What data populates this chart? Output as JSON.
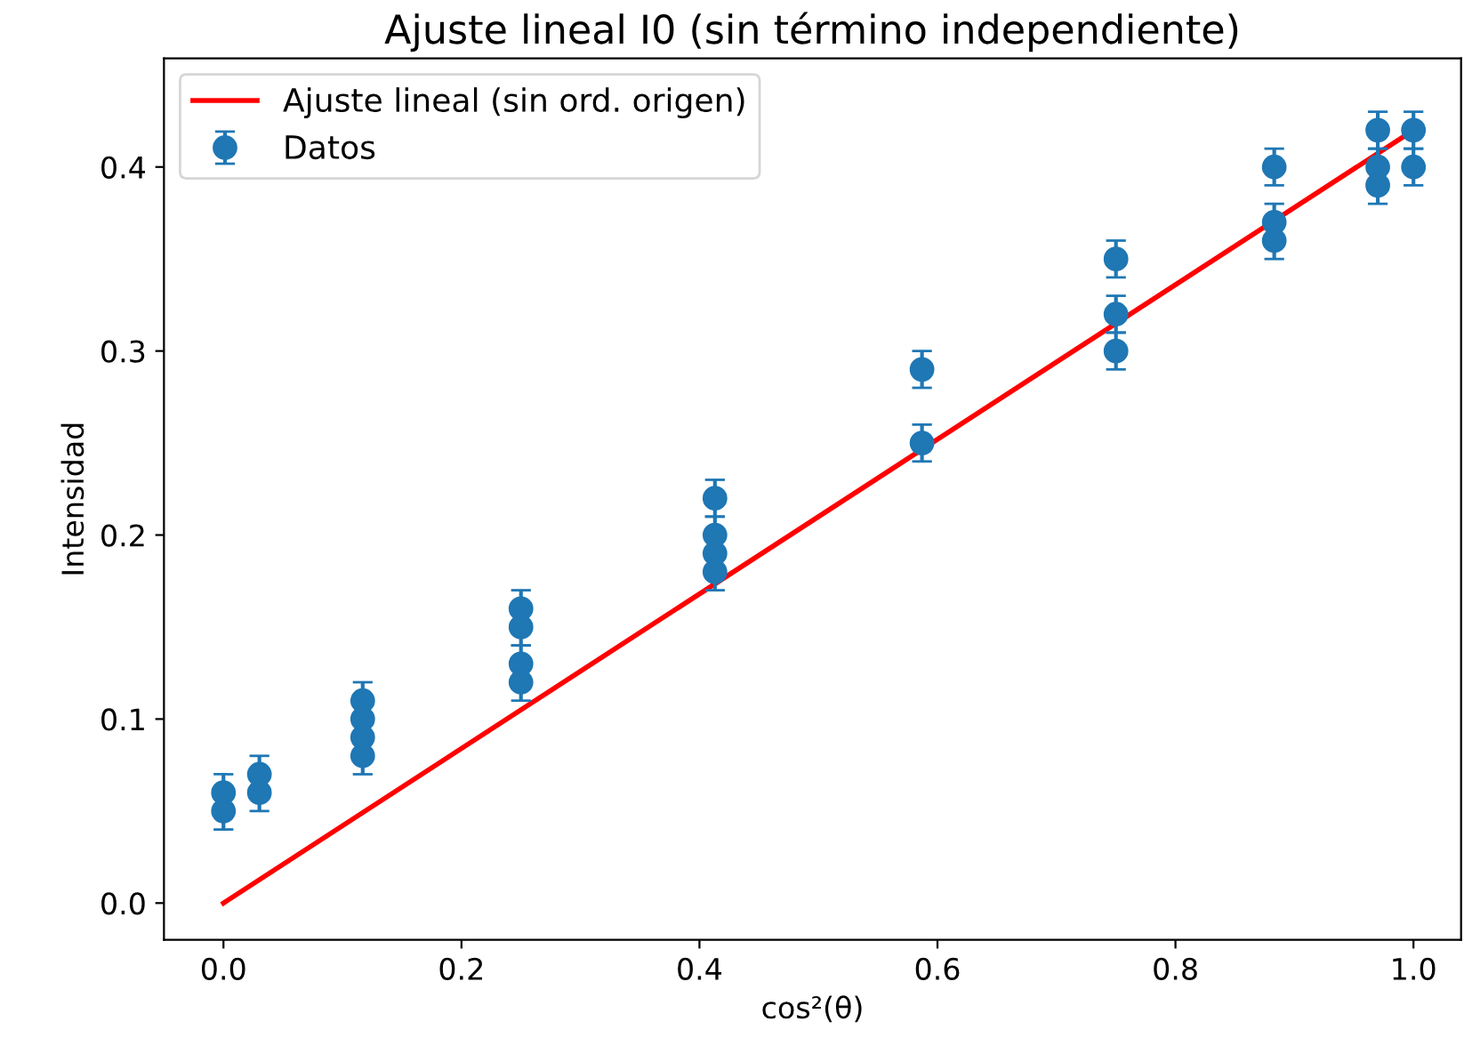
{
  "chart_data": {
    "type": "scatter",
    "title": "Ajuste lineal I0 (sin término independiente)",
    "xlabel": "cos²(θ)",
    "ylabel": "Intensidad",
    "xlim": [
      -0.05,
      1.04
    ],
    "ylim": [
      -0.02,
      0.459
    ],
    "xticks": [
      {
        "value": 0.0,
        "label": "0.0"
      },
      0.2,
      0.4,
      0.6,
      0.8,
      {
        "value": 1.0,
        "label": "1.0"
      }
    ],
    "yticks": [
      {
        "value": 0.0,
        "label": "0.0"
      },
      0.1,
      0.2,
      0.3,
      0.4
    ],
    "grid": false,
    "legend": "top left",
    "series": [
      {
        "name": "Ajuste lineal (sin ord. origen)",
        "type": "line",
        "color": "#ff0000",
        "x": [
          0,
          1
        ],
        "values": [
          0,
          0.42
        ]
      },
      {
        "name": "Datos",
        "marker": "circle",
        "color": "#1f77b4",
        "x": [
          0,
          0,
          0.0302,
          0.0302,
          0.117,
          0.117,
          0.117,
          0.117,
          0.25,
          0.25,
          0.25,
          0.25,
          0.413,
          0.413,
          0.413,
          0.413,
          0.587,
          0.587,
          0.75,
          0.75,
          0.75,
          0.883,
          0.883,
          0.883,
          0.97,
          0.97,
          0.97,
          1,
          1
        ],
        "values": [
          0.06,
          0.05,
          0.07,
          0.06,
          0.11,
          0.1,
          0.09,
          0.08,
          0.16,
          0.15,
          0.13,
          0.12,
          0.22,
          0.2,
          0.19,
          0.18,
          0.29,
          0.25,
          0.35,
          0.32,
          0.3,
          0.4,
          0.37,
          0.36,
          0.42,
          0.4,
          0.39,
          0.42,
          0.4
        ],
        "errors": [
          0.01,
          0.01,
          0.01,
          0.01,
          0.01,
          0.01,
          0.01,
          0.01,
          0.01,
          0.01,
          0.01,
          0.01,
          0.01,
          0.01,
          0.01,
          0.01,
          0.01,
          0.01,
          0.01,
          0.01,
          0.01,
          0.01,
          0.01,
          0.01,
          0.01,
          0.01,
          0.01,
          0.01,
          0.01
        ]
      }
    ]
  }
}
